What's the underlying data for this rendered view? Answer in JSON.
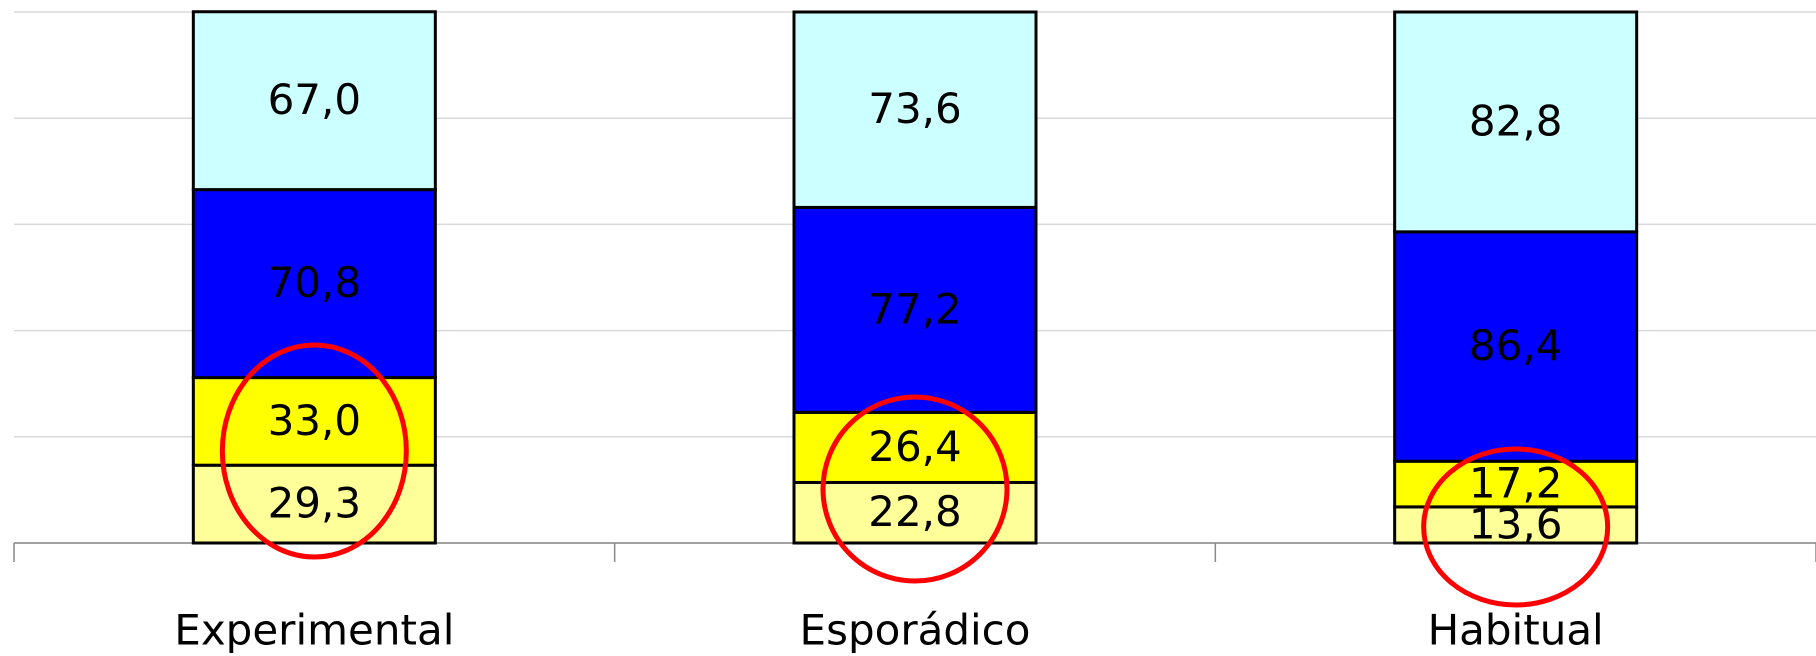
{
  "chart_data": {
    "type": "stacked_bar",
    "categories": [
      "Experimental",
      "Esporádico",
      "Habitual"
    ],
    "series": [
      {
        "color": "#ffff99",
        "values": [
          29.3,
          22.8,
          13.6
        ],
        "value_labels": [
          "29,3",
          "22,8",
          "13,6"
        ]
      },
      {
        "color": "#ffff00",
        "values": [
          33.0,
          26.4,
          17.2
        ],
        "value_labels": [
          "33,0",
          "26,4",
          "17,2"
        ]
      },
      {
        "color": "#0000ff",
        "values": [
          70.8,
          77.2,
          86.4
        ],
        "value_labels": [
          "70,8",
          "77,2",
          "86,4"
        ]
      },
      {
        "color": "#ccffff",
        "values": [
          67.0,
          73.6,
          82.8
        ],
        "value_labels": [
          "67,0",
          "73,6",
          "82,8"
        ]
      }
    ],
    "ylim": [
      0,
      200
    ],
    "yticks": [
      0,
      40,
      80,
      120,
      160,
      200
    ],
    "grid": true
  }
}
